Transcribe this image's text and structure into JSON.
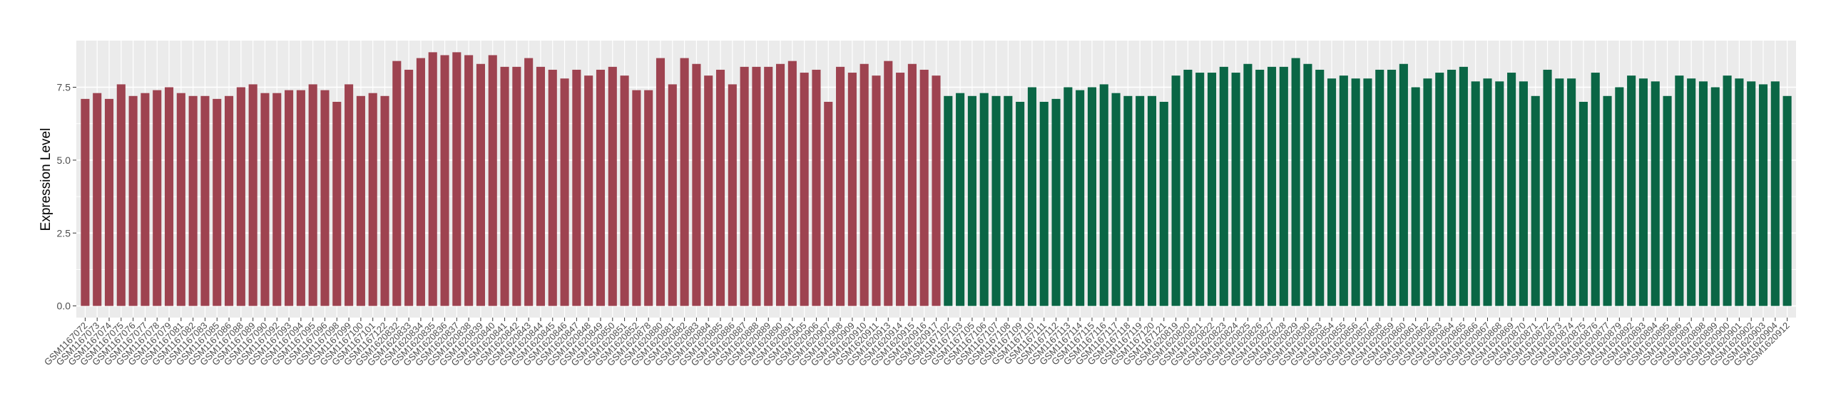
{
  "chart_data": {
    "type": "bar",
    "y_label": "Expression Level",
    "ylim": [
      -0.4,
      9.1
    ],
    "yticks": [
      {
        "value": 0,
        "label": "0.0"
      },
      {
        "value": 2.5,
        "label": "2.5"
      },
      {
        "value": 5,
        "label": "5.0"
      },
      {
        "value": 7.5,
        "label": "7.5"
      }
    ],
    "grid": true,
    "series": [
      {
        "color": "#9e4350",
        "categories": [
          "GSM1167072",
          "GSM1167073",
          "GSM1167074",
          "GSM1167075",
          "GSM1167076",
          "GSM1167077",
          "GSM1167078",
          "GSM1167079",
          "GSM1167081",
          "GSM1167082",
          "GSM1167083",
          "GSM1167085",
          "GSM1167086",
          "GSM1167088",
          "GSM1167089",
          "GSM1167090",
          "GSM1167092",
          "GSM1167093",
          "GSM1167094",
          "GSM1167095",
          "GSM1167096",
          "GSM1167098",
          "GSM1167099",
          "GSM1167100",
          "GSM1167101",
          "GSM1167122",
          "GSM1620832",
          "GSM1620833",
          "GSM1620834",
          "GSM1620835",
          "GSM1620836",
          "GSM1620837",
          "GSM1620838",
          "GSM1620839",
          "GSM1620840",
          "GSM1620841",
          "GSM1620842",
          "GSM1620843",
          "GSM1620844",
          "GSM1620845",
          "GSM1620846",
          "GSM1620847",
          "GSM1620848",
          "GSM1620849",
          "GSM1620850",
          "GSM1620851",
          "GSM1620852",
          "GSM1620878",
          "GSM1620880",
          "GSM1620881",
          "GSM1620882",
          "GSM1620883",
          "GSM1620884",
          "GSM1620885",
          "GSM1620886",
          "GSM1620887",
          "GSM1620888",
          "GSM1620889",
          "GSM1620890",
          "GSM1620891",
          "GSM1620905",
          "GSM1620906",
          "GSM1620907",
          "GSM1620908",
          "GSM1620909",
          "GSM1620910",
          "GSM1620911",
          "GSM1620913",
          "GSM1620914",
          "GSM1620915",
          "GSM1620916",
          "GSM1620917"
        ],
        "values": [
          7.1,
          7.3,
          7.1,
          7.6,
          7.2,
          7.3,
          7.4,
          7.5,
          7.3,
          7.2,
          7.2,
          7.1,
          7.2,
          7.5,
          7.6,
          7.3,
          7.3,
          7.4,
          7.4,
          7.6,
          7.4,
          7.0,
          7.6,
          7.2,
          7.3,
          7.2,
          8.4,
          8.1,
          8.5,
          8.7,
          8.6,
          8.7,
          8.6,
          8.3,
          8.6,
          8.2,
          8.2,
          8.5,
          8.2,
          8.1,
          7.8,
          8.1,
          7.9,
          8.1,
          8.2,
          7.9,
          7.4,
          7.4,
          8.5,
          7.6,
          8.5,
          8.3,
          7.9,
          8.1,
          7.6,
          8.2,
          8.2,
          8.2,
          8.3,
          8.4,
          8.0,
          8.1,
          7.0,
          8.2,
          8.0,
          8.3,
          7.9,
          8.4,
          8.0,
          8.3,
          8.1,
          7.9
        ]
      },
      {
        "color": "#0a6645",
        "categories": [
          "GSM1167102",
          "GSM1167103",
          "GSM1167105",
          "GSM1167106",
          "GSM1167107",
          "GSM1167108",
          "GSM1167109",
          "GSM1167110",
          "GSM1167111",
          "GSM1167112",
          "GSM1167113",
          "GSM1167114",
          "GSM1167115",
          "GSM1167116",
          "GSM1167117",
          "GSM1167118",
          "GSM1167119",
          "GSM1167120",
          "GSM1167121",
          "GSM1620819",
          "GSM1620820",
          "GSM1620821",
          "GSM1620822",
          "GSM1620823",
          "GSM1620824",
          "GSM1620825",
          "GSM1620826",
          "GSM1620827",
          "GSM1620828",
          "GSM1620829",
          "GSM1620830",
          "GSM1620853",
          "GSM1620854",
          "GSM1620855",
          "GSM1620856",
          "GSM1620857",
          "GSM1620858",
          "GSM1620859",
          "GSM1620860",
          "GSM1620861",
          "GSM1620862",
          "GSM1620863",
          "GSM1620864",
          "GSM1620865",
          "GSM1620866",
          "GSM1620867",
          "GSM1620868",
          "GSM1620869",
          "GSM1620870",
          "GSM1620871",
          "GSM1620872",
          "GSM1620873",
          "GSM1620874",
          "GSM1620875",
          "GSM1620876",
          "GSM1620877",
          "GSM1620879",
          "GSM1620892",
          "GSM1620893",
          "GSM1620894",
          "GSM1620895",
          "GSM1620896",
          "GSM1620897",
          "GSM1620898",
          "GSM1620899",
          "GSM1620900",
          "GSM1620901",
          "GSM1620902",
          "GSM1620903",
          "GSM1620904",
          "GSM1620912"
        ],
        "values": [
          7.2,
          7.3,
          7.2,
          7.3,
          7.2,
          7.2,
          7.0,
          7.5,
          7.0,
          7.1,
          7.5,
          7.4,
          7.5,
          7.6,
          7.3,
          7.2,
          7.2,
          7.2,
          7.0,
          7.9,
          8.1,
          8.0,
          8.0,
          8.2,
          8.0,
          8.3,
          8.1,
          8.2,
          8.2,
          8.5,
          8.3,
          8.1,
          7.8,
          7.9,
          7.8,
          7.8,
          8.1,
          8.1,
          8.3,
          7.5,
          7.8,
          8.0,
          8.1,
          8.2,
          7.7,
          7.8,
          7.7,
          8.0,
          7.7,
          7.2,
          8.1,
          7.8,
          7.8,
          7.0,
          8.0,
          7.2,
          7.5,
          7.9,
          7.8,
          7.7,
          7.2,
          7.9,
          7.8,
          7.7,
          7.5,
          7.9,
          7.8,
          7.7,
          7.6,
          7.7,
          7.2
        ]
      }
    ]
  }
}
